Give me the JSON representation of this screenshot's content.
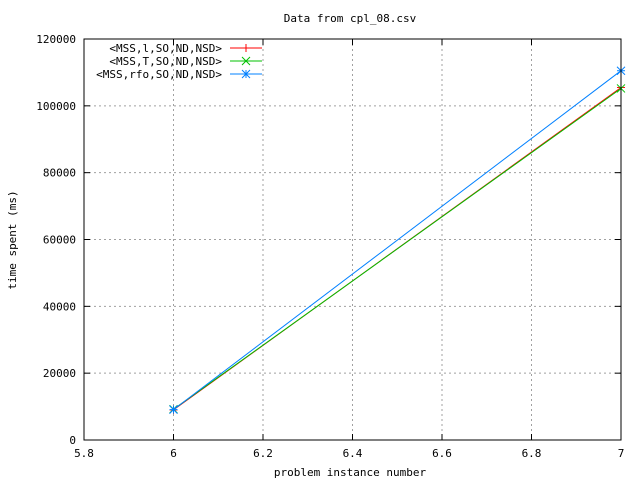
{
  "chart_data": {
    "type": "line",
    "title": "Data from cpl_08.csv",
    "xlabel": "problem instance number",
    "ylabel": "time spent (ms)",
    "xlim": [
      5.8,
      7
    ],
    "ylim": [
      0,
      120000
    ],
    "xticks": [
      5.8,
      6,
      6.2,
      6.4,
      6.6,
      6.8,
      7
    ],
    "xtick_labels": [
      "5.8",
      "6",
      "6.2",
      "6.4",
      "6.6",
      "6.8",
      "7"
    ],
    "yticks": [
      0,
      20000,
      40000,
      60000,
      80000,
      100000,
      120000
    ],
    "ytick_labels": [
      "0",
      "20000",
      "40000",
      "60000",
      "80000",
      "100000",
      "120000"
    ],
    "grid": true,
    "legend_position": "top-left",
    "series": [
      {
        "name": "<MSS,l,SO,ND,NSD>",
        "color": "#ff0000",
        "marker": "plus",
        "x": [
          6,
          7
        ],
        "y": [
          9000,
          105500
        ]
      },
      {
        "name": "<MSS,T,SO,ND,NSD>",
        "color": "#00c000",
        "marker": "cross",
        "x": [
          6,
          7
        ],
        "y": [
          9200,
          105200
        ]
      },
      {
        "name": "<MSS,rfo,SO,ND,NSD>",
        "color": "#0080ff",
        "marker": "star",
        "x": [
          6,
          7
        ],
        "y": [
          9100,
          110500
        ]
      }
    ]
  }
}
